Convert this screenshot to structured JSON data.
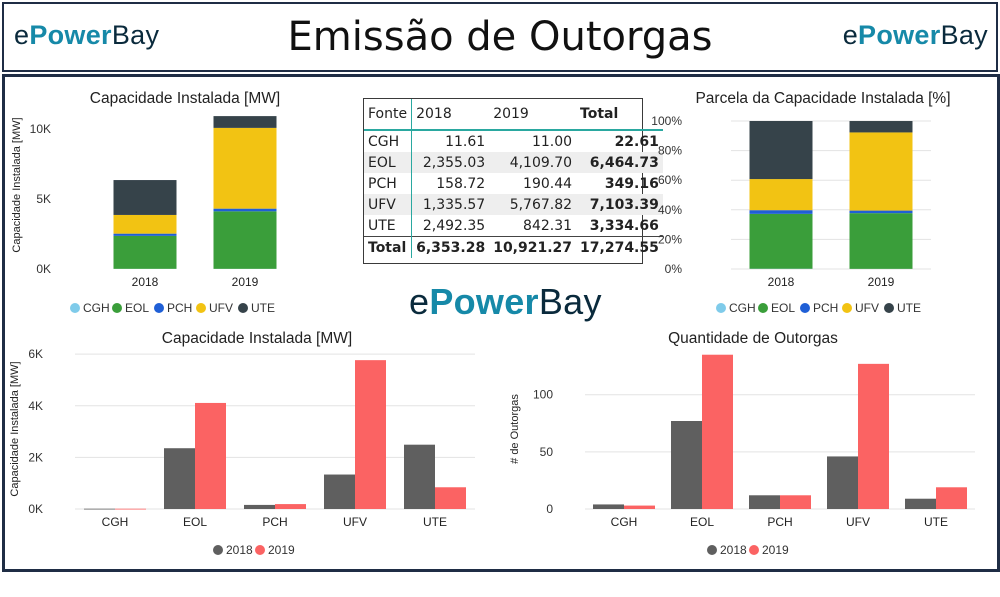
{
  "header": {
    "title": "Emissão de Outorgas",
    "logo_left": [
      "e",
      "Power",
      "Bay"
    ],
    "logo_right": [
      "e",
      "Power",
      "Bay"
    ]
  },
  "center_logo": [
    "e",
    "Power",
    "Bay"
  ],
  "colors": {
    "CGH": "#7fcbea",
    "EOL": "#3a9e3a",
    "PCH": "#1f5fd6",
    "UFV": "#f2c313",
    "UTE": "#36434a",
    "y2018": "#5f5f5f",
    "y2019": "#fb6363",
    "frame": "#1f2d45",
    "teal": "#2aa8a0"
  },
  "table": {
    "headers": [
      "Fonte",
      "2018",
      "2019",
      "Total"
    ],
    "rows": [
      [
        "CGH",
        "11.61",
        "11.00",
        "22.61"
      ],
      [
        "EOL",
        "2,355.03",
        "4,109.70",
        "6,464.73"
      ],
      [
        "PCH",
        "158.72",
        "190.44",
        "349.16"
      ],
      [
        "UFV",
        "1,335.57",
        "5,767.82",
        "7,103.39"
      ],
      [
        "UTE",
        "2,492.35",
        "842.31",
        "3,334.66"
      ]
    ],
    "total": [
      "Total",
      "6,353.28",
      "10,921.27",
      "17,274.55"
    ]
  },
  "chart_data": [
    {
      "type": "bar",
      "stacked": true,
      "title": "Capacidade Instalada [MW]",
      "xlabel": "",
      "ylabel": "Capacidade Instalada [MW]",
      "categories": [
        "2018",
        "2019"
      ],
      "ylim": [
        0,
        12000
      ],
      "yticks": [
        0,
        5000,
        10000
      ],
      "ytick_labels": [
        "0K",
        "5K",
        "10K"
      ],
      "series": [
        {
          "name": "CGH",
          "values": [
            11.61,
            11.0
          ]
        },
        {
          "name": "EOL",
          "values": [
            2355.03,
            4109.7
          ]
        },
        {
          "name": "PCH",
          "values": [
            158.72,
            190.44
          ]
        },
        {
          "name": "UFV",
          "values": [
            1335.57,
            5767.82
          ]
        },
        {
          "name": "UTE",
          "values": [
            2492.35,
            842.31
          ]
        }
      ],
      "legend": "bottom"
    },
    {
      "type": "bar",
      "stacked": true,
      "title": "Parcela da Capacidade Instalada [%]",
      "xlabel": "",
      "ylabel": "",
      "categories": [
        "2018",
        "2019"
      ],
      "ylim": [
        0,
        100
      ],
      "yticks": [
        0,
        20,
        40,
        60,
        80,
        100
      ],
      "ytick_labels": [
        "0%",
        "20%",
        "40%",
        "60%",
        "80%",
        "100%"
      ],
      "series": [
        {
          "name": "CGH",
          "values": [
            0.18,
            0.1
          ]
        },
        {
          "name": "EOL",
          "values": [
            37.07,
            37.63
          ]
        },
        {
          "name": "PCH",
          "values": [
            2.5,
            1.74
          ]
        },
        {
          "name": "UFV",
          "values": [
            21.02,
            52.81
          ]
        },
        {
          "name": "UTE",
          "values": [
            39.23,
            7.71
          ]
        }
      ],
      "legend": "bottom"
    },
    {
      "type": "bar",
      "stacked": false,
      "title": "Capacidade Instalada [MW]",
      "xlabel": "",
      "ylabel": "Capacidade Instalada [MW]",
      "categories": [
        "CGH",
        "EOL",
        "PCH",
        "UFV",
        "UTE"
      ],
      "ylim": [
        0,
        6200
      ],
      "yticks": [
        0,
        2000,
        4000,
        6000
      ],
      "ytick_labels": [
        "0K",
        "2K",
        "4K",
        "6K"
      ],
      "series": [
        {
          "name": "2018",
          "values": [
            11.61,
            2355.03,
            158.72,
            1335.57,
            2492.35
          ]
        },
        {
          "name": "2019",
          "values": [
            11.0,
            4109.7,
            190.44,
            5767.82,
            842.31
          ]
        }
      ],
      "legend": "bottom"
    },
    {
      "type": "bar",
      "stacked": false,
      "title": "Quantidade de Outorgas",
      "xlabel": "",
      "ylabel": "# de Outorgas",
      "categories": [
        "CGH",
        "EOL",
        "PCH",
        "UFV",
        "UTE"
      ],
      "ylim": [
        0,
        140
      ],
      "yticks": [
        0,
        50,
        100
      ],
      "ytick_labels": [
        "0",
        "50",
        "100"
      ],
      "series": [
        {
          "name": "2018",
          "values": [
            4,
            77,
            12,
            46,
            9
          ]
        },
        {
          "name": "2019",
          "values": [
            3,
            135,
            12,
            127,
            19
          ]
        }
      ],
      "legend": "bottom"
    }
  ]
}
